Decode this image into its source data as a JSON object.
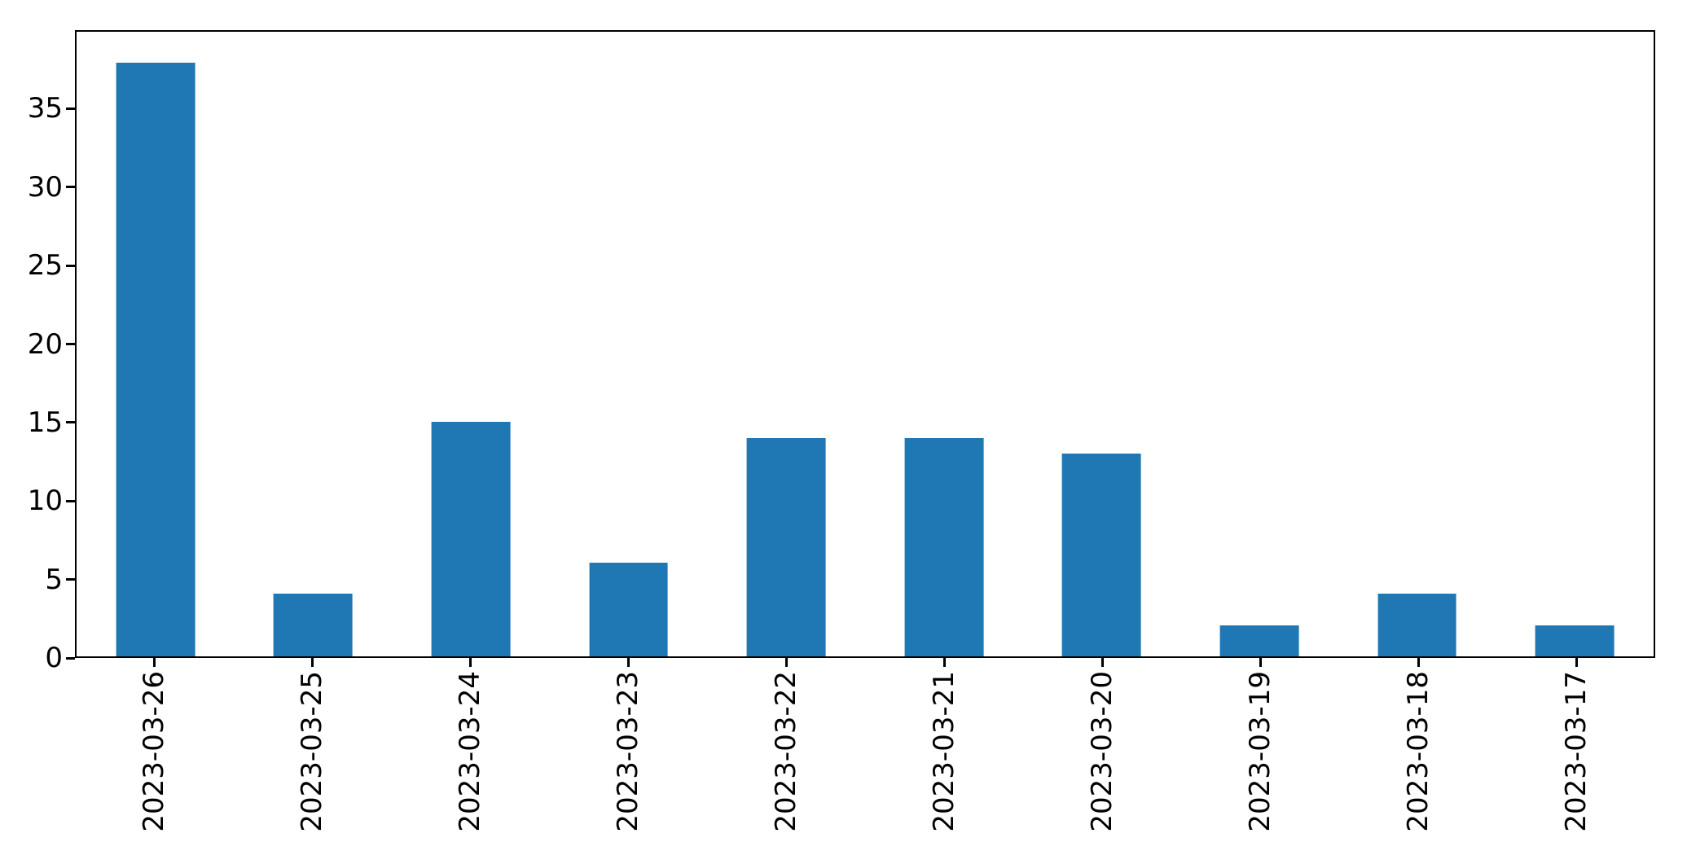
{
  "chart_data": {
    "type": "bar",
    "title": "",
    "xlabel": "",
    "ylabel": "",
    "categories": [
      "2023-03-26",
      "2023-03-25",
      "2023-03-24",
      "2023-03-23",
      "2023-03-22",
      "2023-03-21",
      "2023-03-20",
      "2023-03-19",
      "2023-03-18",
      "2023-03-17"
    ],
    "values": [
      38,
      4,
      15,
      6,
      14,
      14,
      13,
      2,
      4,
      2
    ],
    "ylim": [
      0,
      40
    ],
    "yticks": [
      0,
      5,
      10,
      15,
      20,
      25,
      30,
      35
    ],
    "xtick_rotation_deg": 90,
    "bar_relative_width": 0.5,
    "grid": false,
    "legend": "none",
    "colors": {
      "bar": "#1f77b4",
      "axis": "#000000",
      "background": "#ffffff",
      "tick_label": "#000000"
    }
  }
}
